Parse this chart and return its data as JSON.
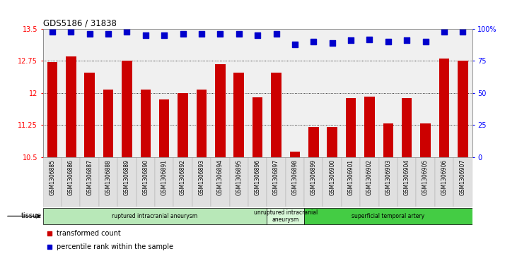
{
  "title": "GDS5186 / 31838",
  "samples": [
    "GSM1306885",
    "GSM1306886",
    "GSM1306887",
    "GSM1306888",
    "GSM1306889",
    "GSM1306890",
    "GSM1306891",
    "GSM1306892",
    "GSM1306893",
    "GSM1306894",
    "GSM1306895",
    "GSM1306896",
    "GSM1306897",
    "GSM1306898",
    "GSM1306899",
    "GSM1306900",
    "GSM1306901",
    "GSM1306902",
    "GSM1306903",
    "GSM1306904",
    "GSM1306905",
    "GSM1306906",
    "GSM1306907"
  ],
  "bar_values": [
    12.72,
    12.85,
    12.48,
    12.08,
    12.75,
    12.08,
    11.85,
    12.0,
    12.08,
    12.68,
    12.48,
    11.9,
    12.48,
    10.62,
    11.2,
    11.2,
    11.88,
    11.92,
    11.28,
    11.88,
    11.28,
    12.8,
    12.75
  ],
  "percentile_values": [
    98,
    98,
    96,
    96,
    98,
    95,
    95,
    96,
    96,
    96,
    96,
    95,
    96,
    88,
    90,
    89,
    91,
    92,
    90,
    91,
    90,
    98,
    98
  ],
  "ylim_left": [
    10.5,
    13.5
  ],
  "ylim_right": [
    0,
    100
  ],
  "yticks_left": [
    10.5,
    11.25,
    12.0,
    12.75,
    13.5
  ],
  "ytick_labels_left": [
    "10.5",
    "11.25",
    "12",
    "12.75",
    "13.5"
  ],
  "yticks_right": [
    0,
    25,
    50,
    75,
    100
  ],
  "ytick_labels_right": [
    "0",
    "25",
    "50",
    "75",
    "100%"
  ],
  "bar_color": "#cc0000",
  "dot_color": "#0000cc",
  "bg_plot": "#f0f0f0",
  "bg_fig": "#ffffff",
  "tissue_groups": [
    {
      "label": "ruptured intracranial aneurysm",
      "start": 0,
      "end": 12,
      "color": "#b8e8b8"
    },
    {
      "label": "unruptured intracranial\naneurysm",
      "start": 12,
      "end": 14,
      "color": "#d8f8d8"
    },
    {
      "label": "superficial temporal artery",
      "start": 14,
      "end": 23,
      "color": "#44cc44"
    }
  ],
  "tissue_label": "tissue",
  "legend_bar_label": "transformed count",
  "legend_dot_label": "percentile rank within the sample",
  "dot_size": 28,
  "bar_width": 0.55
}
